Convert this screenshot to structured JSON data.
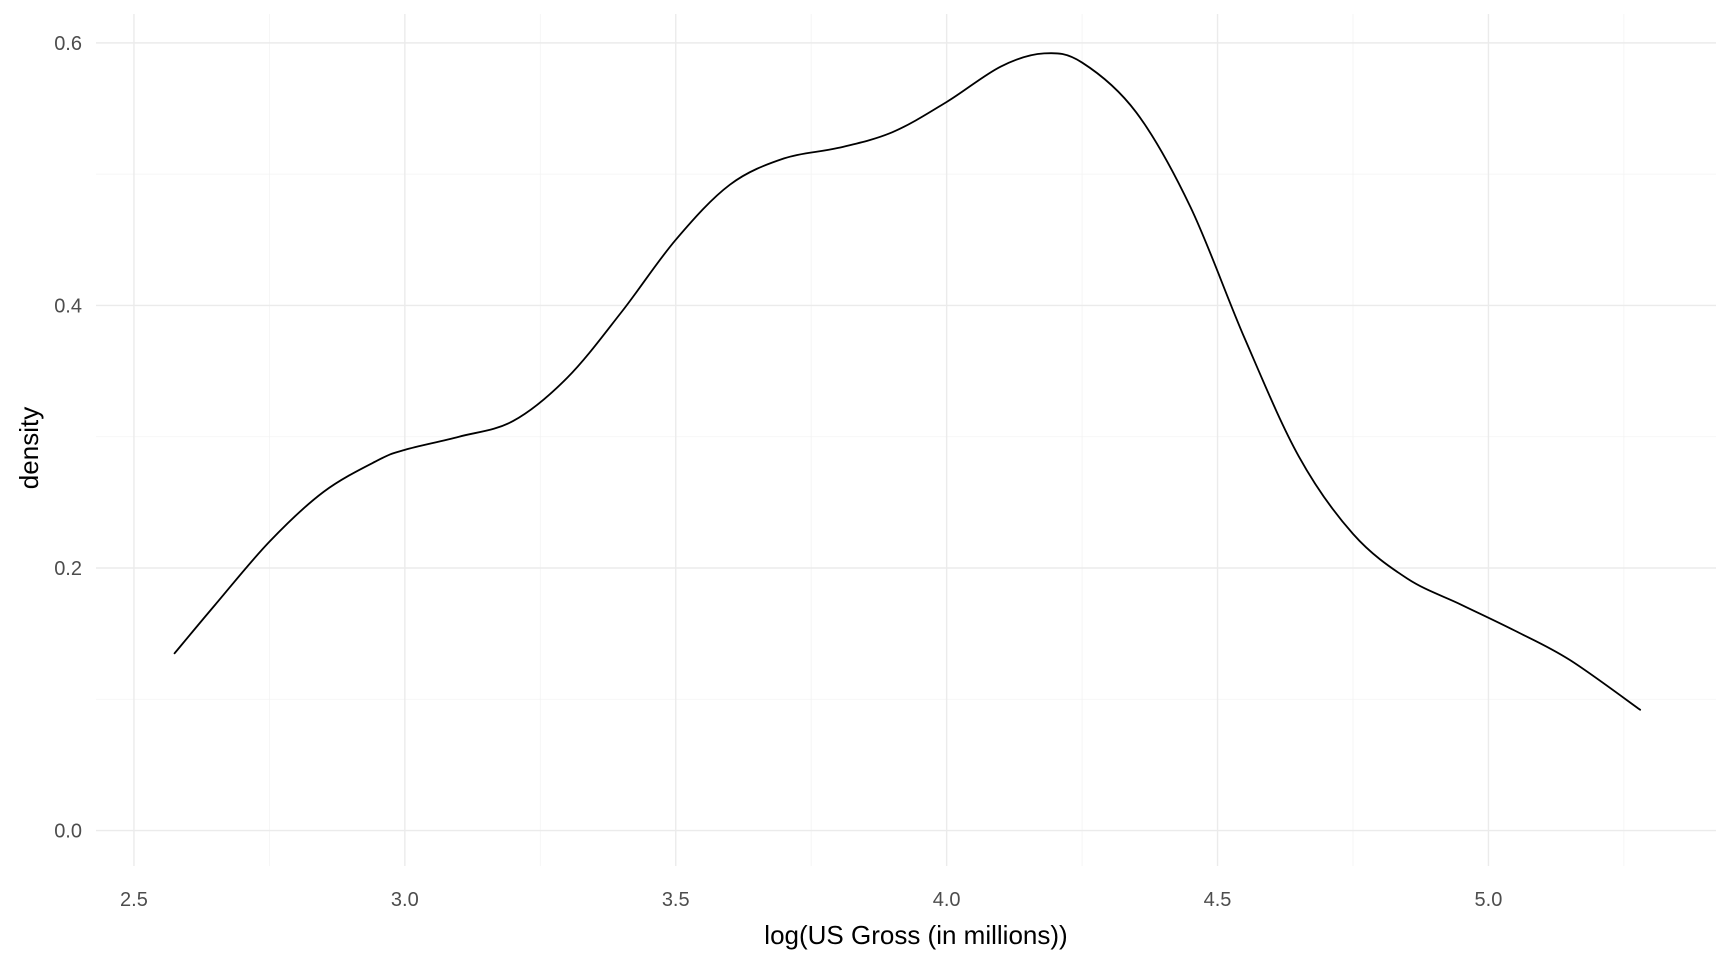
{
  "chart_data": {
    "type": "line",
    "title": "",
    "xlabel": "log(US Gross (in millions))",
    "ylabel": "density",
    "xlim": [
      2.43,
      5.42
    ],
    "ylim": [
      -0.027,
      0.622
    ],
    "x_ticks": [
      2.5,
      3.0,
      3.5,
      4.0,
      4.5,
      5.0
    ],
    "x_tick_labels": [
      "2.5",
      "3.0",
      "3.5",
      "4.0",
      "4.5",
      "5.0"
    ],
    "y_ticks": [
      0.0,
      0.2,
      0.4,
      0.6
    ],
    "y_tick_labels": [
      "0.0",
      "0.2",
      "0.4",
      "0.6"
    ],
    "grid": true,
    "legend": "none",
    "colors": {
      "line": "#000000",
      "grid": "#ebebeb",
      "tick_text": "#4d4d4d"
    },
    "series": [
      {
        "x": [
          2.575,
          2.65,
          2.75,
          2.85,
          2.95,
          3.0,
          3.1,
          3.2,
          3.3,
          3.4,
          3.5,
          3.6,
          3.7,
          3.8,
          3.9,
          4.0,
          4.1,
          4.18,
          4.25,
          4.35,
          4.45,
          4.55,
          4.65,
          4.75,
          4.85,
          4.95,
          5.05,
          5.15,
          5.28
        ],
        "y": [
          0.135,
          0.172,
          0.22,
          0.258,
          0.282,
          0.29,
          0.3,
          0.312,
          0.345,
          0.395,
          0.45,
          0.492,
          0.512,
          0.52,
          0.532,
          0.555,
          0.582,
          0.592,
          0.585,
          0.547,
          0.475,
          0.375,
          0.285,
          0.226,
          0.192,
          0.172,
          0.152,
          0.13,
          0.092
        ]
      }
    ]
  }
}
